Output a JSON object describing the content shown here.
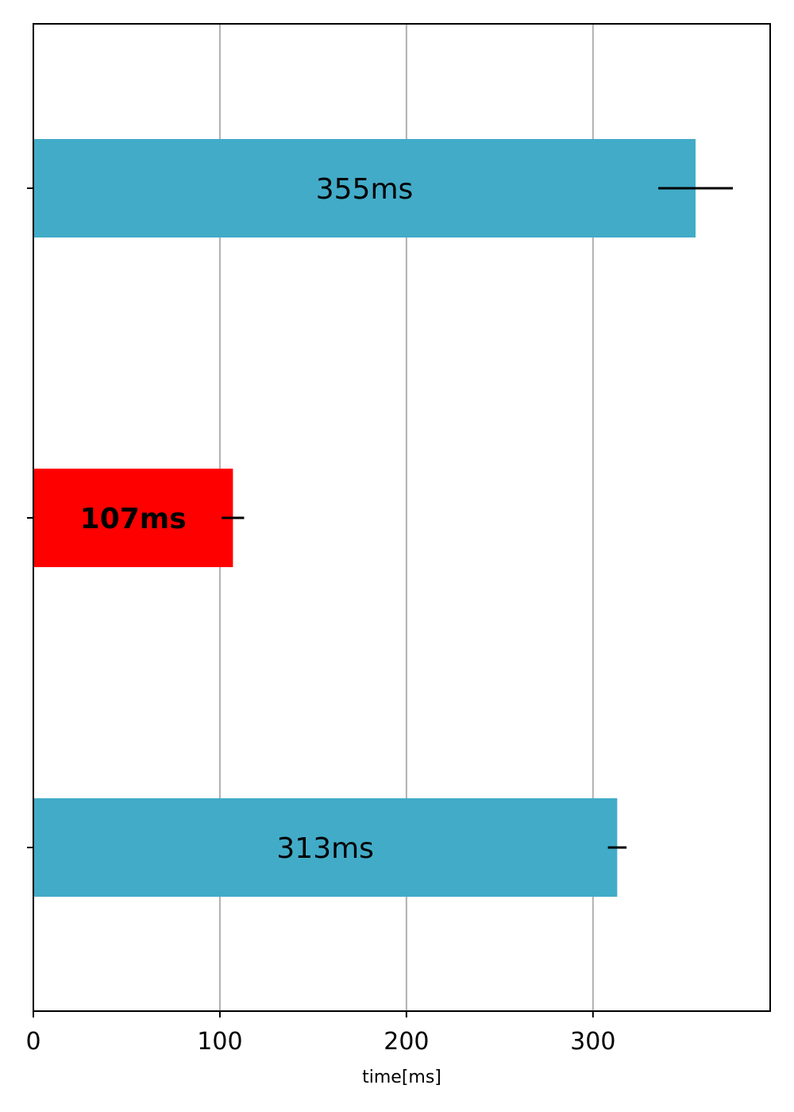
{
  "chart_data": {
    "type": "bar",
    "orientation": "horizontal",
    "xlabel": "time[ms]",
    "ylabel": "",
    "title": "",
    "xlim": [
      0,
      395
    ],
    "xticks": [
      0,
      100,
      200,
      300
    ],
    "xtick_labels": [
      "0",
      "100",
      "200",
      "300"
    ],
    "grid": "vertical",
    "legend": "none",
    "bars": [
      {
        "value": 355,
        "error": 20,
        "label": "355ms",
        "color": "#42abc8",
        "bold": false
      },
      {
        "value": 107,
        "error": 6,
        "label": "107ms",
        "color": "#ff0000",
        "bold": true
      },
      {
        "value": 313,
        "error": 5,
        "label": "313ms",
        "color": "#42abc8",
        "bold": false
      }
    ]
  }
}
